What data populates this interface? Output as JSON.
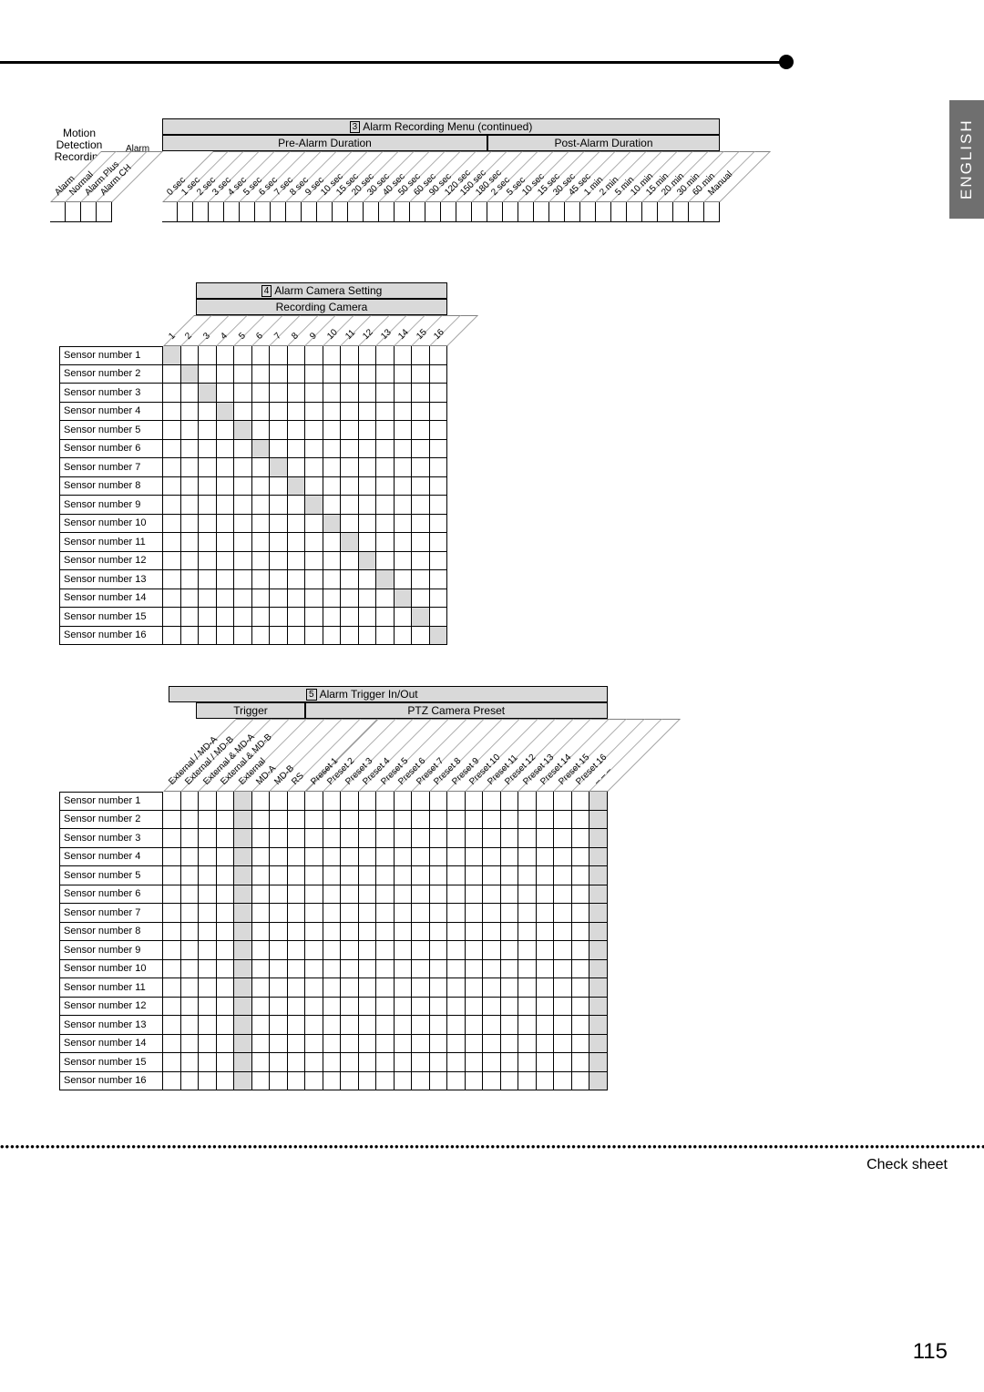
{
  "language_tab": "ENGLISH",
  "page_number": "115",
  "footer_label": "Check sheet",
  "section3": {
    "title_num": "3",
    "title": "Alarm Recording Menu (continued)",
    "group_left_lines": [
      "Motion",
      "Detection",
      "Recording"
    ],
    "alarm_mode_label": "Alarm\nMode",
    "pre_label": "Pre-Alarm Duration",
    "post_label": "Post-Alarm Duration",
    "motion_cols": [
      "Alarm",
      "Normal",
      "Alarm Plus",
      "Alarm CH"
    ],
    "pre_cols": [
      "0 sec",
      "1 sec",
      "2 sec",
      "3 sec",
      "4 sec",
      "5 sec",
      "6 sec",
      "7 sec",
      "8 sec",
      "9 sec",
      "10 sec",
      "15 sec",
      "20 sec",
      "30 sec",
      "40 sec",
      "50 sec",
      "60 sec",
      "90 sec",
      "120 sec",
      "150 sec",
      "180 sec"
    ],
    "post_cols": [
      "2 sec",
      "5 sec",
      "10 sec",
      "15 sec",
      "30 sec",
      "45 sec",
      "1 min",
      "2 min",
      "5 min",
      "10 min",
      "15 min",
      "20 min",
      "30 min",
      "60 min",
      "Manual"
    ]
  },
  "section4": {
    "title_num": "4",
    "title": "Alarm Camera Setting",
    "subtitle": "Recording Camera",
    "cols": [
      "1",
      "2",
      "3",
      "4",
      "5",
      "6",
      "7",
      "8",
      "9",
      "10",
      "11",
      "12",
      "13",
      "14",
      "15",
      "16"
    ],
    "row_label_prefix": "Sensor number",
    "row_count": 16
  },
  "section5": {
    "title_num": "5",
    "title": "Alarm Trigger In/Out",
    "trigger_label": "Trigger",
    "ptz_label": "PTZ Camera Preset",
    "trigger_cols": [
      "External / MD-A",
      "External / MD-B",
      "External & MD-A",
      "External & MD-B",
      "External",
      "MD-A",
      "MD-B",
      "RS"
    ],
    "preset_cols": [
      "Preset 1",
      "Preset 2",
      "Preset 3",
      "Preset 4",
      "Preset 5",
      "Preset 6",
      "Preset 7",
      "Preset 8",
      "Preset 9",
      "Preset 10",
      "Preset 11",
      "Preset 12",
      "Preset 13",
      "Preset 14",
      "Preset 15",
      "Preset 16",
      "– – –"
    ],
    "row_label_prefix": "Sensor number",
    "row_count": 16,
    "shaded_trigger_col_index": 4,
    "shaded_preset_col_index": 16
  }
}
